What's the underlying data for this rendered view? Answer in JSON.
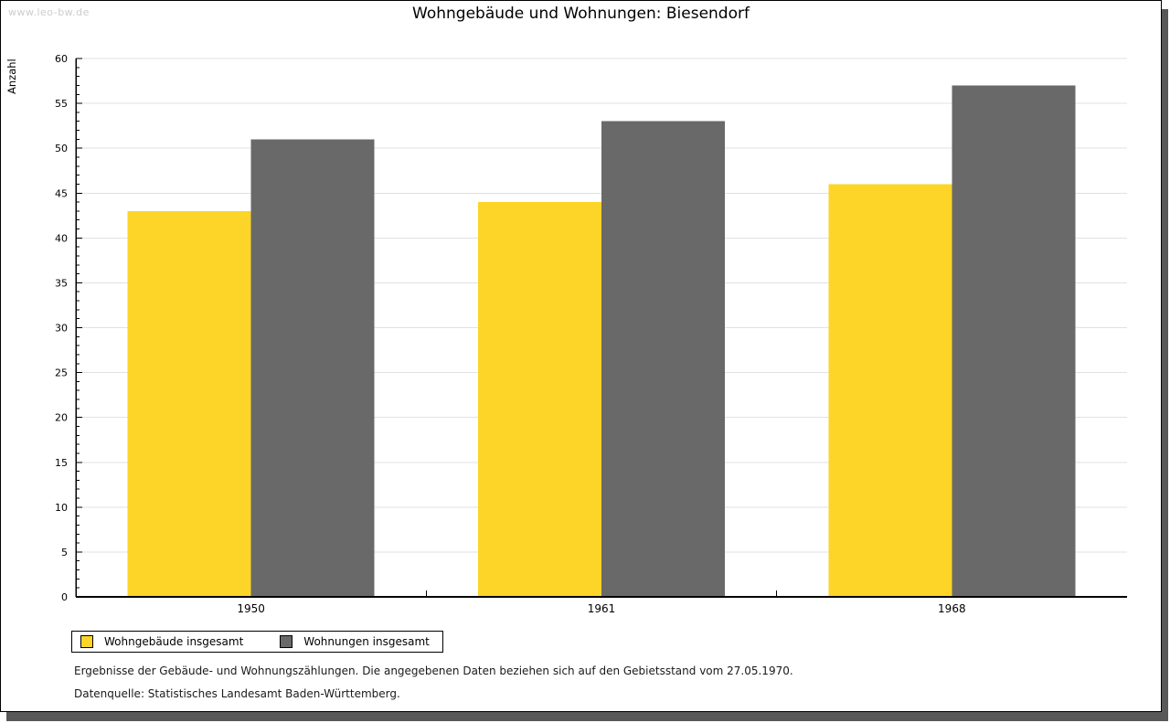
{
  "watermark": "www.leo-bw.de",
  "title": "Wohngebäude und Wohnungen: Biesendorf",
  "chart_data": {
    "type": "bar",
    "title": "Wohngebäude und Wohnungen: Biesendorf",
    "xlabel": "",
    "ylabel": "Anzahl",
    "categories": [
      "1950",
      "1961",
      "1968"
    ],
    "series": [
      {
        "name": "Wohngebäude insgesamt",
        "color": "#FCD528",
        "values": [
          43,
          44,
          46
        ]
      },
      {
        "name": "Wohnungen insgesamt",
        "color": "#696969",
        "values": [
          51,
          53,
          57
        ]
      }
    ],
    "ylim": [
      0,
      60
    ],
    "yticks": [
      0,
      5,
      10,
      15,
      20,
      25,
      30,
      35,
      40,
      45,
      50,
      55,
      60
    ],
    "minor_tick_step": 1,
    "grid": true,
    "gridline_color": "#e2e2e2",
    "legend_position": "bottom-left"
  },
  "footer": {
    "line1": "Ergebnisse der Gebäude- und Wohnungszählungen. Die angegebenen Daten beziehen sich auf den Gebietsstand vom 27.05.1970.",
    "line2": "Datenquelle: Statistisches Landesamt Baden-Württemberg."
  },
  "colors": {
    "frame_shadow": "#585858",
    "axis": "#000000",
    "watermark_text": "#cccccc"
  }
}
